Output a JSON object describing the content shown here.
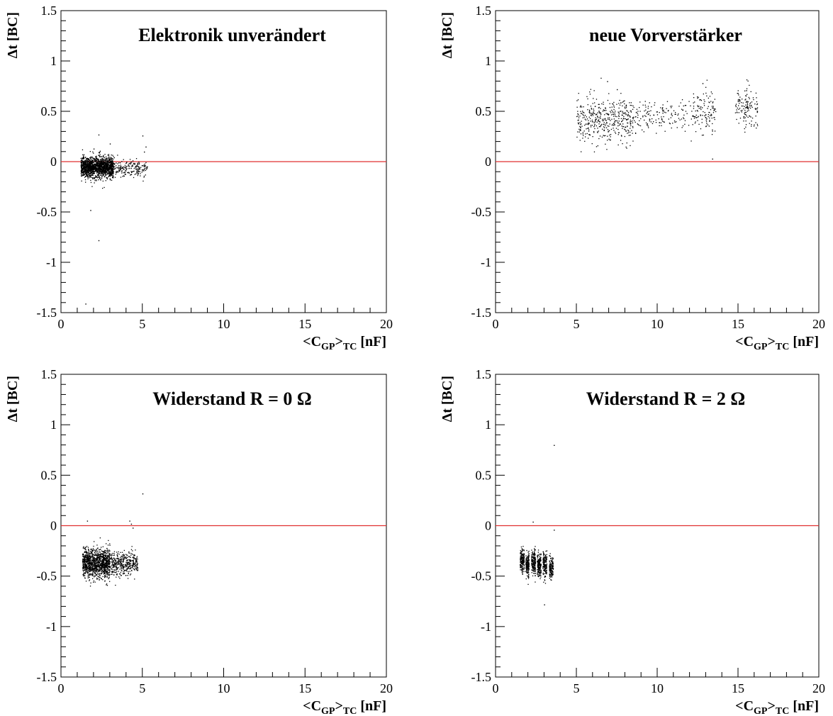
{
  "chart_data": [
    {
      "type": "scatter",
      "title": "Elektronik unverändert",
      "xlabel": "<C_GP>_TC [nF]",
      "ylabel": "Δt [BC]",
      "xlim": [
        0,
        20
      ],
      "ylim": [
        -1.5,
        1.5
      ],
      "x_ticks": [
        "0",
        "5",
        "10",
        "15",
        "20"
      ],
      "y_ticks": [
        "1.5",
        "1",
        "0.5",
        "0",
        "-0.5",
        "-1",
        "-1.5"
      ],
      "reference_line": {
        "y": 0,
        "color": "#e03030"
      },
      "marker_color": "#000000",
      "clusters": [
        {
          "x_range": [
            1.2,
            3.2
          ],
          "y_center": -0.05,
          "y_spread": 0.05,
          "count": 1600
        },
        {
          "x_range": [
            3.0,
            5.3
          ],
          "y_center": -0.06,
          "y_spread": 0.04,
          "count": 220
        }
      ],
      "outliers": [
        {
          "x": 2.3,
          "y": 0.27
        },
        {
          "x": 5.0,
          "y": 0.26
        },
        {
          "x": 1.8,
          "y": -0.48
        },
        {
          "x": 2.3,
          "y": -0.78
        },
        {
          "x": 1.5,
          "y": -1.41
        },
        {
          "x": 3.0,
          "y": 0.18
        },
        {
          "x": 5.2,
          "y": 0.15
        },
        {
          "x": 5.1,
          "y": 0.1
        },
        {
          "x": 2.0,
          "y": 0.13
        }
      ]
    },
    {
      "type": "scatter",
      "title": "neue Vorverstärker",
      "xlabel": "<C_GP>_TC [nF]",
      "ylabel": "Δt [BC]",
      "xlim": [
        0,
        20
      ],
      "ylim": [
        -1.5,
        1.5
      ],
      "x_ticks": [
        "0",
        "5",
        "10",
        "15",
        "20"
      ],
      "y_ticks": [
        "1.5",
        "1",
        "0.5",
        "0",
        "-0.5",
        "-1",
        "-1.5"
      ],
      "reference_line": {
        "y": 0,
        "color": "#e03030"
      },
      "marker_color": "#000000",
      "clusters": [
        {
          "x_range": [
            5.0,
            8.5
          ],
          "y_center": 0.42,
          "y_spread": 0.11,
          "count": 420
        },
        {
          "x_range": [
            8.5,
            12.0
          ],
          "y_center": 0.45,
          "y_spread": 0.08,
          "count": 150
        },
        {
          "x_range": [
            12.0,
            13.6
          ],
          "y_center": 0.5,
          "y_spread": 0.11,
          "count": 120
        },
        {
          "x_range": [
            14.8,
            16.2
          ],
          "y_center": 0.53,
          "y_spread": 0.1,
          "count": 130
        }
      ],
      "outliers": [
        {
          "x": 6.9,
          "y": 0.8
        },
        {
          "x": 12.8,
          "y": 0.78
        },
        {
          "x": 13.4,
          "y": 0.03
        },
        {
          "x": 7.5,
          "y": 0.72
        },
        {
          "x": 15.5,
          "y": 0.71
        }
      ]
    },
    {
      "type": "scatter",
      "title": "Widerstand R = 0 Ω",
      "xlabel": "<C_GP>_TC [nF]",
      "ylabel": "Δt [BC]",
      "xlim": [
        0,
        20
      ],
      "ylim": [
        -1.5,
        1.5
      ],
      "x_ticks": [
        "0",
        "5",
        "10",
        "15",
        "20"
      ],
      "y_ticks": [
        "1.5",
        "1",
        "0.5",
        "0",
        "-0.5",
        "-1",
        "-1.5"
      ],
      "reference_line": {
        "y": 0,
        "color": "#e03030"
      },
      "marker_color": "#000000",
      "clusters": [
        {
          "x_range": [
            1.3,
            3.0
          ],
          "y_center": -0.37,
          "y_spread": 0.07,
          "count": 1200
        },
        {
          "x_range": [
            3.0,
            4.7
          ],
          "y_center": -0.38,
          "y_spread": 0.06,
          "count": 400
        }
      ],
      "outliers": [
        {
          "x": 1.6,
          "y": 0.05
        },
        {
          "x": 4.3,
          "y": 0.02
        },
        {
          "x": 4.4,
          "y": -0.02
        },
        {
          "x": 5.0,
          "y": 0.32
        },
        {
          "x": 4.2,
          "y": 0.05
        }
      ]
    },
    {
      "type": "scatter",
      "title": "Widerstand R = 2 Ω",
      "xlabel": "<C_GP>_TC [nF]",
      "ylabel": "Δt [BC]",
      "xlim": [
        0,
        20
      ],
      "ylim": [
        -1.5,
        1.5
      ],
      "x_ticks": [
        "0",
        "5",
        "10",
        "15",
        "20"
      ],
      "y_ticks": [
        "1.5",
        "1",
        "0.5",
        "0",
        "-0.5",
        "-1",
        "-1.5"
      ],
      "reference_line": {
        "y": 0,
        "color": "#e03030"
      },
      "marker_color": "#000000",
      "clusters": [
        {
          "x_range": [
            1.5,
            1.75
          ],
          "y_center": -0.34,
          "y_spread": 0.05,
          "count": 180
        },
        {
          "x_range": [
            1.85,
            2.05
          ],
          "y_center": -0.38,
          "y_spread": 0.06,
          "count": 180
        },
        {
          "x_range": [
            2.2,
            2.45
          ],
          "y_center": -0.36,
          "y_spread": 0.06,
          "count": 180
        },
        {
          "x_range": [
            2.55,
            2.8
          ],
          "y_center": -0.4,
          "y_spread": 0.06,
          "count": 180
        },
        {
          "x_range": [
            2.9,
            3.15
          ],
          "y_center": -0.38,
          "y_spread": 0.06,
          "count": 160
        },
        {
          "x_range": [
            3.3,
            3.55
          ],
          "y_center": -0.42,
          "y_spread": 0.05,
          "count": 140
        }
      ],
      "outliers": [
        {
          "x": 3.6,
          "y": 0.8
        },
        {
          "x": 2.3,
          "y": 0.04
        },
        {
          "x": 3.0,
          "y": -0.78
        },
        {
          "x": 3.6,
          "y": -0.04
        }
      ]
    }
  ]
}
